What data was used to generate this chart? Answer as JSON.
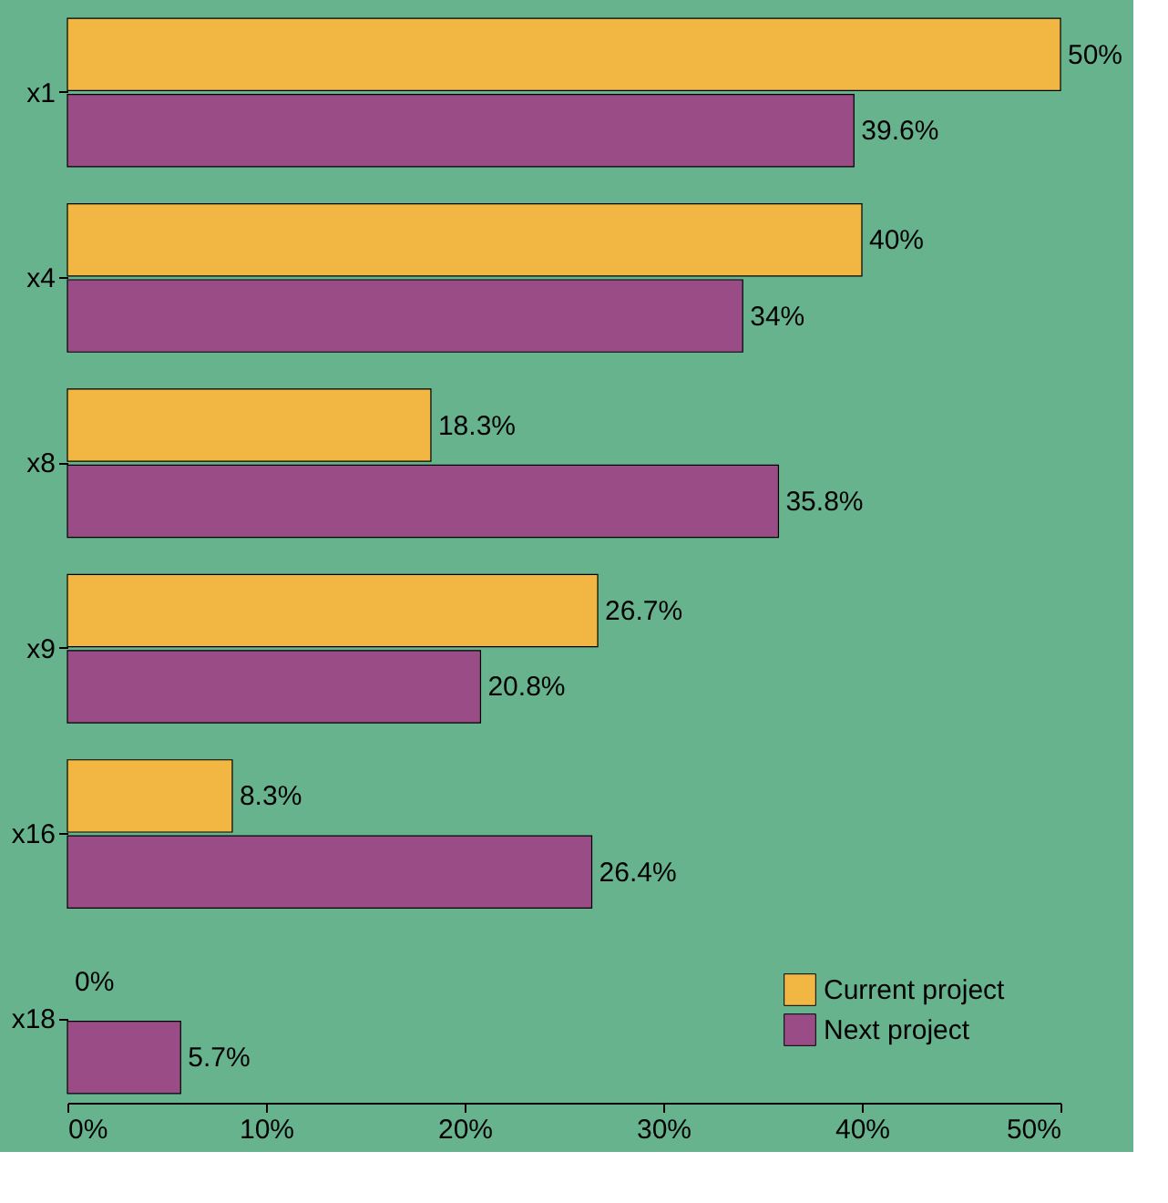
{
  "chart_data": {
    "type": "bar",
    "orientation": "horizontal",
    "categories": [
      "x1",
      "x4",
      "x8",
      "x9",
      "x16",
      "x18"
    ],
    "series": [
      {
        "name": "Current project",
        "color": "#f2b642",
        "values": [
          50,
          40,
          18.3,
          26.7,
          8.3,
          0
        ],
        "value_labels": [
          "50%",
          "40%",
          "18.3%",
          "26.7%",
          "8.3%",
          "0%"
        ]
      },
      {
        "name": "Next project",
        "color": "#9a4c86",
        "values": [
          39.6,
          34,
          35.8,
          20.8,
          26.4,
          5.7
        ],
        "value_labels": [
          "39.6%",
          "34%",
          "35.8%",
          "20.8%",
          "26.4%",
          "5.7%"
        ]
      }
    ],
    "xlim": [
      0,
      50
    ],
    "xticks": [
      {
        "value": 0,
        "label": "0%"
      },
      {
        "value": 10,
        "label": "10%"
      },
      {
        "value": 20,
        "label": "20%"
      },
      {
        "value": 30,
        "label": "30%"
      },
      {
        "value": 40,
        "label": "40%"
      },
      {
        "value": 50,
        "label": "50%"
      }
    ],
    "grid": false,
    "legend": "bottom right"
  }
}
